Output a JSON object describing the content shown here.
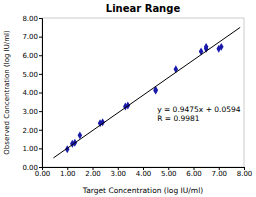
{
  "chart_data": {
    "type": "scatter",
    "title": "Linear Range",
    "x_label": "Target Concentration (log IU/ml)",
    "y_label": "Observed Concentration (log IU/ml)",
    "xlim": [
      0.0,
      8.0
    ],
    "ylim": [
      0.0,
      8.0
    ],
    "xticks": [
      {
        "value": 0,
        "label": "0.00"
      },
      {
        "value": 1,
        "label": "1.00"
      },
      {
        "value": 2,
        "label": "2.00"
      },
      {
        "value": 3,
        "label": "3.00"
      },
      {
        "value": 4,
        "label": "4.00"
      },
      {
        "value": 5,
        "label": "5.00"
      },
      {
        "value": 6,
        "label": "6.00"
      },
      {
        "value": 7,
        "label": "7.00"
      },
      {
        "value": 8,
        "label": "8.00"
      }
    ],
    "yticks": [
      {
        "value": 0,
        "label": "0.00"
      },
      {
        "value": 1,
        "label": "1.00"
      },
      {
        "value": 2,
        "label": "2.00"
      },
      {
        "value": 3,
        "label": "3.00"
      },
      {
        "value": 4,
        "label": "4.00"
      },
      {
        "value": 5,
        "label": "5.00"
      },
      {
        "value": 6,
        "label": "6.00"
      },
      {
        "value": 7,
        "label": "7.00"
      },
      {
        "value": 8,
        "label": "8.00"
      }
    ],
    "grid": false,
    "series": [
      {
        "type": "scatter",
        "color": "#1a1aaa",
        "marker": "diamond",
        "x": [
          1.0,
          1.2,
          1.3,
          1.5,
          2.3,
          2.4,
          3.3,
          3.4,
          4.5,
          4.5,
          5.3,
          6.3,
          6.5,
          6.5,
          7.0,
          7.1
        ],
        "values": [
          0.95,
          1.25,
          1.3,
          1.7,
          2.35,
          2.4,
          3.25,
          3.3,
          4.1,
          4.15,
          5.25,
          6.2,
          6.35,
          6.45,
          6.35,
          6.45
        ]
      },
      {
        "type": "line",
        "color": "#000000",
        "line_style": "solid",
        "x": [
          0.45,
          7.85
        ],
        "values": [
          0.485775,
          7.497275
        ]
      }
    ],
    "annotation": [
      "y = 0.9475x + 0.0594",
      "R = 0.9981"
    ]
  }
}
